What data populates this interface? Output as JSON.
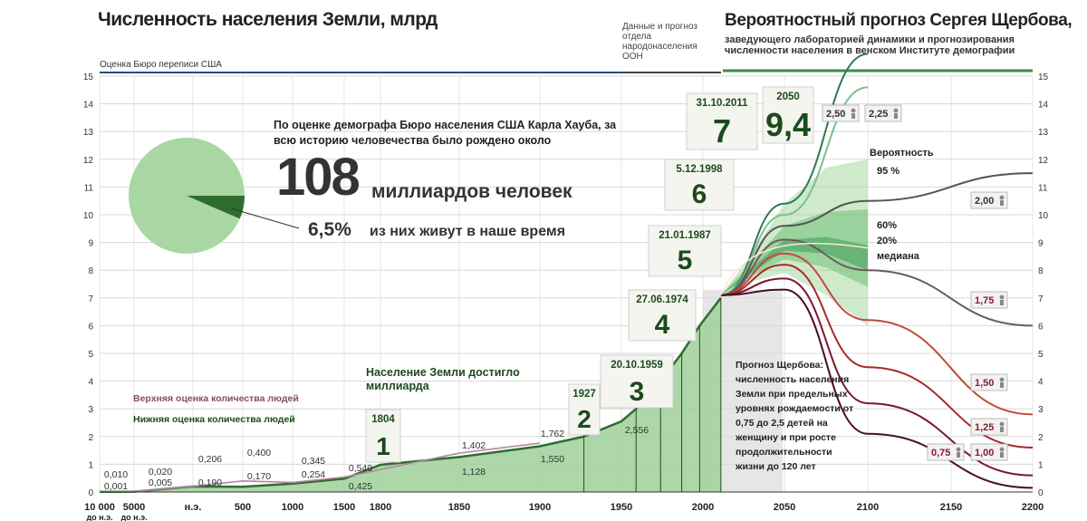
{
  "header": {
    "title": "Численность населения Земли, млрд",
    "un_note": "Данные и прогноз отдела народонаселения ООН",
    "scherbov_title": "Вероятностный прогноз Сергея Щербова,",
    "scherbov_subtitle": "заведующего лабораторией динамики и прогнозирования численности населения в венском Институте демографии",
    "census_note": "Оценка Бюро переписи США"
  },
  "haub": {
    "line1": "По оценке демографа Бюро населения США Карла Хауба, за всю историю человечества было рождено около",
    "big_number": "108",
    "big_unit": "миллиардов человек",
    "percent": "6,5%",
    "percent_text": "из них живут в наше время",
    "pie_share": 0.065
  },
  "notes": {
    "billion": "Население Земли достигло миллиарда",
    "upper_estimate": "Верхняя оценка количества людей",
    "lower_estimate": "Нижняя оценка количества людей",
    "scherbov": "Прогноз Щербова: численность населения Земли при предельных уровнях рождаемости от 0,75 до 2,5 детей на женщину и при росте продолжительности жизни до 120 лет",
    "probability": "Вероятность",
    "p95": "95 %",
    "p60": "60%",
    "p20": "20%",
    "median": "медиана"
  },
  "colors": {
    "green_fill": "#9fd09a",
    "green_dark": "#2f6d2f",
    "upper_line": "#b486a4",
    "forecast_green": "#4f9a6a",
    "forecast_red": "#c0392b",
    "forecast_dark": "#5a1028"
  },
  "chart_data": {
    "type": "area",
    "title": "Численность населения Земли, млрд",
    "ylim": [
      0,
      15
    ],
    "y_ticks": [
      "0",
      "1",
      "2",
      "3",
      "4",
      "5",
      "6",
      "7",
      "8",
      "9",
      "10",
      "11",
      "12",
      "13",
      "14",
      "15"
    ],
    "x_ticks": [
      {
        "label": "10 000",
        "sub": "до н.э."
      },
      {
        "label": "5000",
        "sub": "до н.э."
      },
      {
        "label": "н.э.",
        "sub": ""
      },
      {
        "label": "500",
        "sub": ""
      },
      {
        "label": "1000",
        "sub": ""
      },
      {
        "label": "1500",
        "sub": ""
      },
      {
        "label": "1800",
        "sub": ""
      },
      {
        "label": "1850",
        "sub": ""
      },
      {
        "label": "1900",
        "sub": ""
      },
      {
        "label": "1950",
        "sub": ""
      },
      {
        "label": "2000",
        "sub": ""
      },
      {
        "label": "2050",
        "sub": ""
      },
      {
        "label": "2100",
        "sub": ""
      },
      {
        "label": "2150",
        "sub": ""
      },
      {
        "label": "2200",
        "sub": ""
      }
    ],
    "historical_upper": [
      {
        "x": "10 000 до н.э.",
        "y": 0.01
      },
      {
        "x": "5000 до н.э.",
        "y": 0.02
      },
      {
        "x": "н.э.",
        "y": 0.206
      },
      {
        "x": "500",
        "y": 0.4
      },
      {
        "x": "1000",
        "y": 0.345
      },
      {
        "x": "1500",
        "y": 0.54
      },
      {
        "x": "1850",
        "y": 1.402
      },
      {
        "x": "1900",
        "y": 1.762
      }
    ],
    "historical_lower": [
      {
        "x": "10 000 до н.э.",
        "y": 0.001
      },
      {
        "x": "5000 до н.э.",
        "y": 0.005
      },
      {
        "x": "н.э.",
        "y": 0.19
      },
      {
        "x": "500",
        "y": 0.17
      },
      {
        "x": "1000",
        "y": 0.254
      },
      {
        "x": "1500",
        "y": 0.425
      },
      {
        "x": "1850",
        "y": 1.128
      },
      {
        "x": "1900",
        "y": 1.55
      },
      {
        "x": "1950",
        "y": 2.556
      }
    ],
    "milestones": [
      {
        "year": "1804",
        "value": "1"
      },
      {
        "year": "1927",
        "value": "2"
      },
      {
        "year": "20.10.1959",
        "value": "3"
      },
      {
        "year": "27.06.1974",
        "value": "4"
      },
      {
        "year": "21.01.1987",
        "value": "5"
      },
      {
        "year": "5.12.1998",
        "value": "6"
      },
      {
        "year": "31.10.2011",
        "value": "7"
      },
      {
        "year": "2050",
        "value": "9,4"
      }
    ],
    "fertility_labels": [
      "2,50",
      "2,25",
      "2,00",
      "1,75",
      "1,50",
      "1,25",
      "1,00",
      "0,75"
    ]
  }
}
